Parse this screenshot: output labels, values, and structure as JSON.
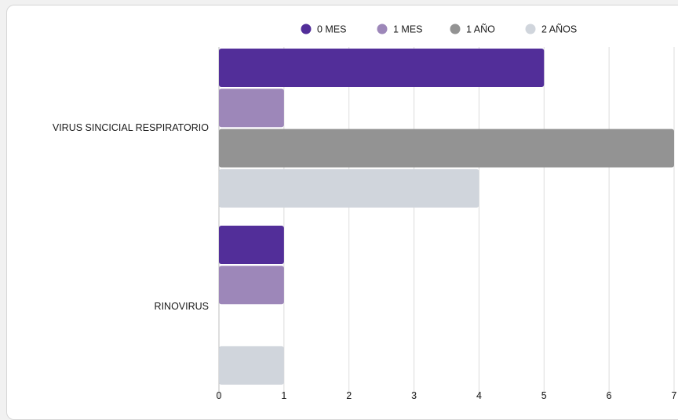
{
  "chart_data": {
    "type": "bar",
    "orientation": "horizontal",
    "categories": [
      "VIRUS SINCICIAL RESPIRATORIO",
      "RINOVIRUS"
    ],
    "series": [
      {
        "name": "0 MES",
        "color": "#522e99",
        "values": [
          5,
          1
        ]
      },
      {
        "name": "1 MES",
        "color": "#9d87b9",
        "values": [
          1,
          1
        ]
      },
      {
        "name": "1 AÑO",
        "color": "#939393",
        "values": [
          7,
          0
        ]
      },
      {
        "name": "2 AÑOS",
        "color": "#d0d5dc",
        "values": [
          4,
          1
        ]
      }
    ],
    "xticks": [
      "0",
      "1",
      "2",
      "3",
      "4",
      "5",
      "6",
      "7"
    ],
    "xlim": [
      0,
      7
    ],
    "grid": true,
    "legend_position": "top-center"
  }
}
